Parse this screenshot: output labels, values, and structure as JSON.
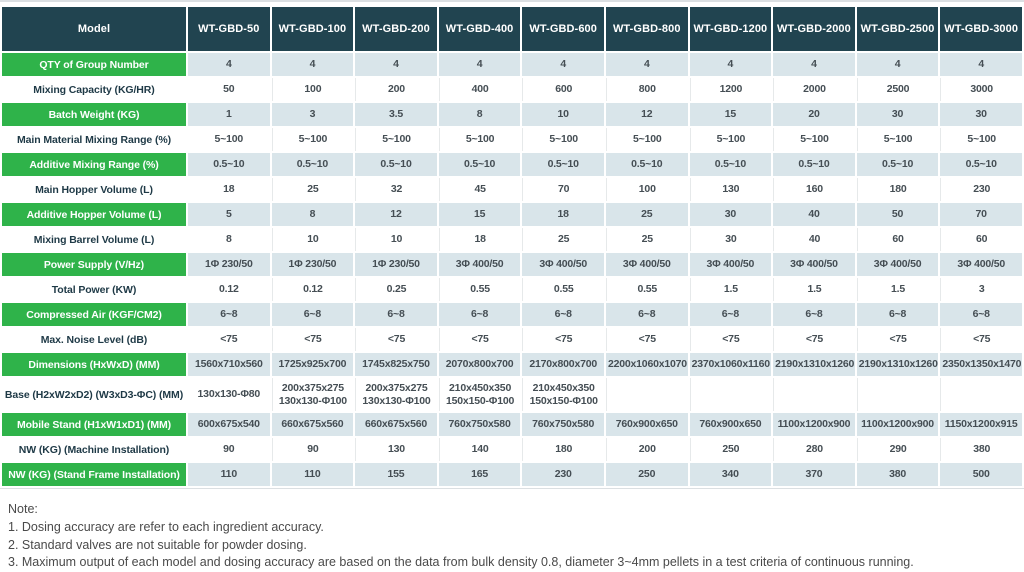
{
  "colors": {
    "header": "#214450",
    "green": "#2fb34a",
    "lightblue": "#d9e5ea",
    "datatext": "#454e54",
    "labeltext": "#1e3946",
    "notetext": "#4a4a4a",
    "rule": "#dbdfe2",
    "sep": "#e6e9ea",
    "slash": "#ccd2d5"
  },
  "table": {
    "header": {
      "model_label": "Model",
      "columns": [
        "WT-GBD-50",
        "WT-GBD-100",
        "WT-GBD-200",
        "WT-GBD-400",
        "WT-GBD-600",
        "WT-GBD-800",
        "WT-GBD-1200",
        "WT-GBD-2000",
        "WT-GBD-2500",
        "WT-GBD-3000"
      ]
    },
    "rows": [
      {
        "label": "QTY of Group Number",
        "type": "green",
        "values": [
          "4",
          "4",
          "4",
          "4",
          "4",
          "4",
          "4",
          "4",
          "4",
          "4"
        ]
      },
      {
        "label": "Mixing Capacity (KG/HR)",
        "type": "white",
        "values": [
          "50",
          "100",
          "200",
          "400",
          "600",
          "800",
          "1200",
          "2000",
          "2500",
          "3000"
        ]
      },
      {
        "label": "Batch Weight (KG)",
        "type": "green",
        "values": [
          "1",
          "3",
          "3.5",
          "8",
          "10",
          "12",
          "15",
          "20",
          "30",
          "30"
        ]
      },
      {
        "label": "Main Material Mixing Range (%)",
        "type": "white",
        "values": [
          "5~100",
          "5~100",
          "5~100",
          "5~100",
          "5~100",
          "5~100",
          "5~100",
          "5~100",
          "5~100",
          "5~100"
        ]
      },
      {
        "label": "Additive Mixing Range (%)",
        "type": "green",
        "values": [
          "0.5~10",
          "0.5~10",
          "0.5~10",
          "0.5~10",
          "0.5~10",
          "0.5~10",
          "0.5~10",
          "0.5~10",
          "0.5~10",
          "0.5~10"
        ]
      },
      {
        "label": "Main Hopper Volume (L)",
        "type": "white",
        "values": [
          "18",
          "25",
          "32",
          "45",
          "70",
          "100",
          "130",
          "160",
          "180",
          "230"
        ]
      },
      {
        "label": "Additive Hopper Volume (L)",
        "type": "green",
        "values": [
          "5",
          "8",
          "12",
          "15",
          "18",
          "25",
          "30",
          "40",
          "50",
          "70"
        ]
      },
      {
        "label": "Mixing Barrel Volume (L)",
        "type": "white",
        "values": [
          "8",
          "10",
          "10",
          "18",
          "25",
          "25",
          "30",
          "40",
          "60",
          "60"
        ]
      },
      {
        "label": "Power Supply (V/Hz)",
        "type": "green",
        "values": [
          "1Φ 230/50",
          "1Φ 230/50",
          "1Φ 230/50",
          "3Φ 400/50",
          "3Φ 400/50",
          "3Φ 400/50",
          "3Φ 400/50",
          "3Φ 400/50",
          "3Φ 400/50",
          "3Φ 400/50"
        ]
      },
      {
        "label": "Total Power (KW)",
        "type": "white",
        "values": [
          "0.12",
          "0.12",
          "0.25",
          "0.55",
          "0.55",
          "0.55",
          "1.5",
          "1.5",
          "1.5",
          "3"
        ]
      },
      {
        "label": "Compressed Air (KGF/CM2)",
        "type": "green",
        "values": [
          "6~8",
          "6~8",
          "6~8",
          "6~8",
          "6~8",
          "6~8",
          "6~8",
          "6~8",
          "6~8",
          "6~8"
        ]
      },
      {
        "label": "Max. Noise Level (dB)",
        "type": "white",
        "values": [
          "<75",
          "<75",
          "<75",
          "<75",
          "<75",
          "<75",
          "<75",
          "<75",
          "<75",
          "<75"
        ]
      },
      {
        "label": "Dimensions (HxWxD) (MM)",
        "type": "green",
        "values": [
          "1560x710x560",
          "1725x925x700",
          "1745x825x750",
          "2070x800x700",
          "2170x800x700",
          "2200x1060x1070",
          "2370x1060x1160",
          "2190x1310x1260",
          "2190x1310x1260",
          "2350x1350x1470"
        ]
      },
      {
        "label": "Base (H2xW2xD2) (W3xD3-ΦC) (MM)",
        "type": "white",
        "tall": true,
        "values": [
          "130x130-Φ80",
          "200x375x275\n130x130-Φ100",
          "200x375x275\n130x130-Φ100",
          "210x450x350\n150x150-Φ100",
          "210x450x350\n150x150-Φ100",
          null,
          null,
          null,
          null,
          null
        ]
      },
      {
        "label": "Mobile Stand (H1xW1xD1) (MM)",
        "type": "green",
        "values": [
          "600x675x540",
          "660x675x560",
          "660x675x560",
          "760x750x580",
          "760x750x580",
          "760x900x650",
          "760x900x650",
          "1100x1200x900",
          "1100x1200x900",
          "1150x1200x915"
        ]
      },
      {
        "label": "NW (KG) (Machine Installation)",
        "type": "white",
        "values": [
          "90",
          "90",
          "130",
          "140",
          "180",
          "200",
          "250",
          "280",
          "290",
          "380"
        ]
      },
      {
        "label": "NW (KG) (Stand Frame Installation)",
        "type": "green",
        "values": [
          "110",
          "110",
          "155",
          "165",
          "230",
          "250",
          "340",
          "370",
          "380",
          "500"
        ]
      }
    ]
  },
  "notes": {
    "title": "Note:",
    "items": [
      "1. Dosing accuracy are refer to each ingredient accuracy.",
      "2. Standard valves are not suitable for powder dosing.",
      "3. Maximum output of each model and dosing accuracy are based on the data from bulk density 0.8, diameter 3~4mm pellets in a test criteria of continuous running."
    ]
  }
}
